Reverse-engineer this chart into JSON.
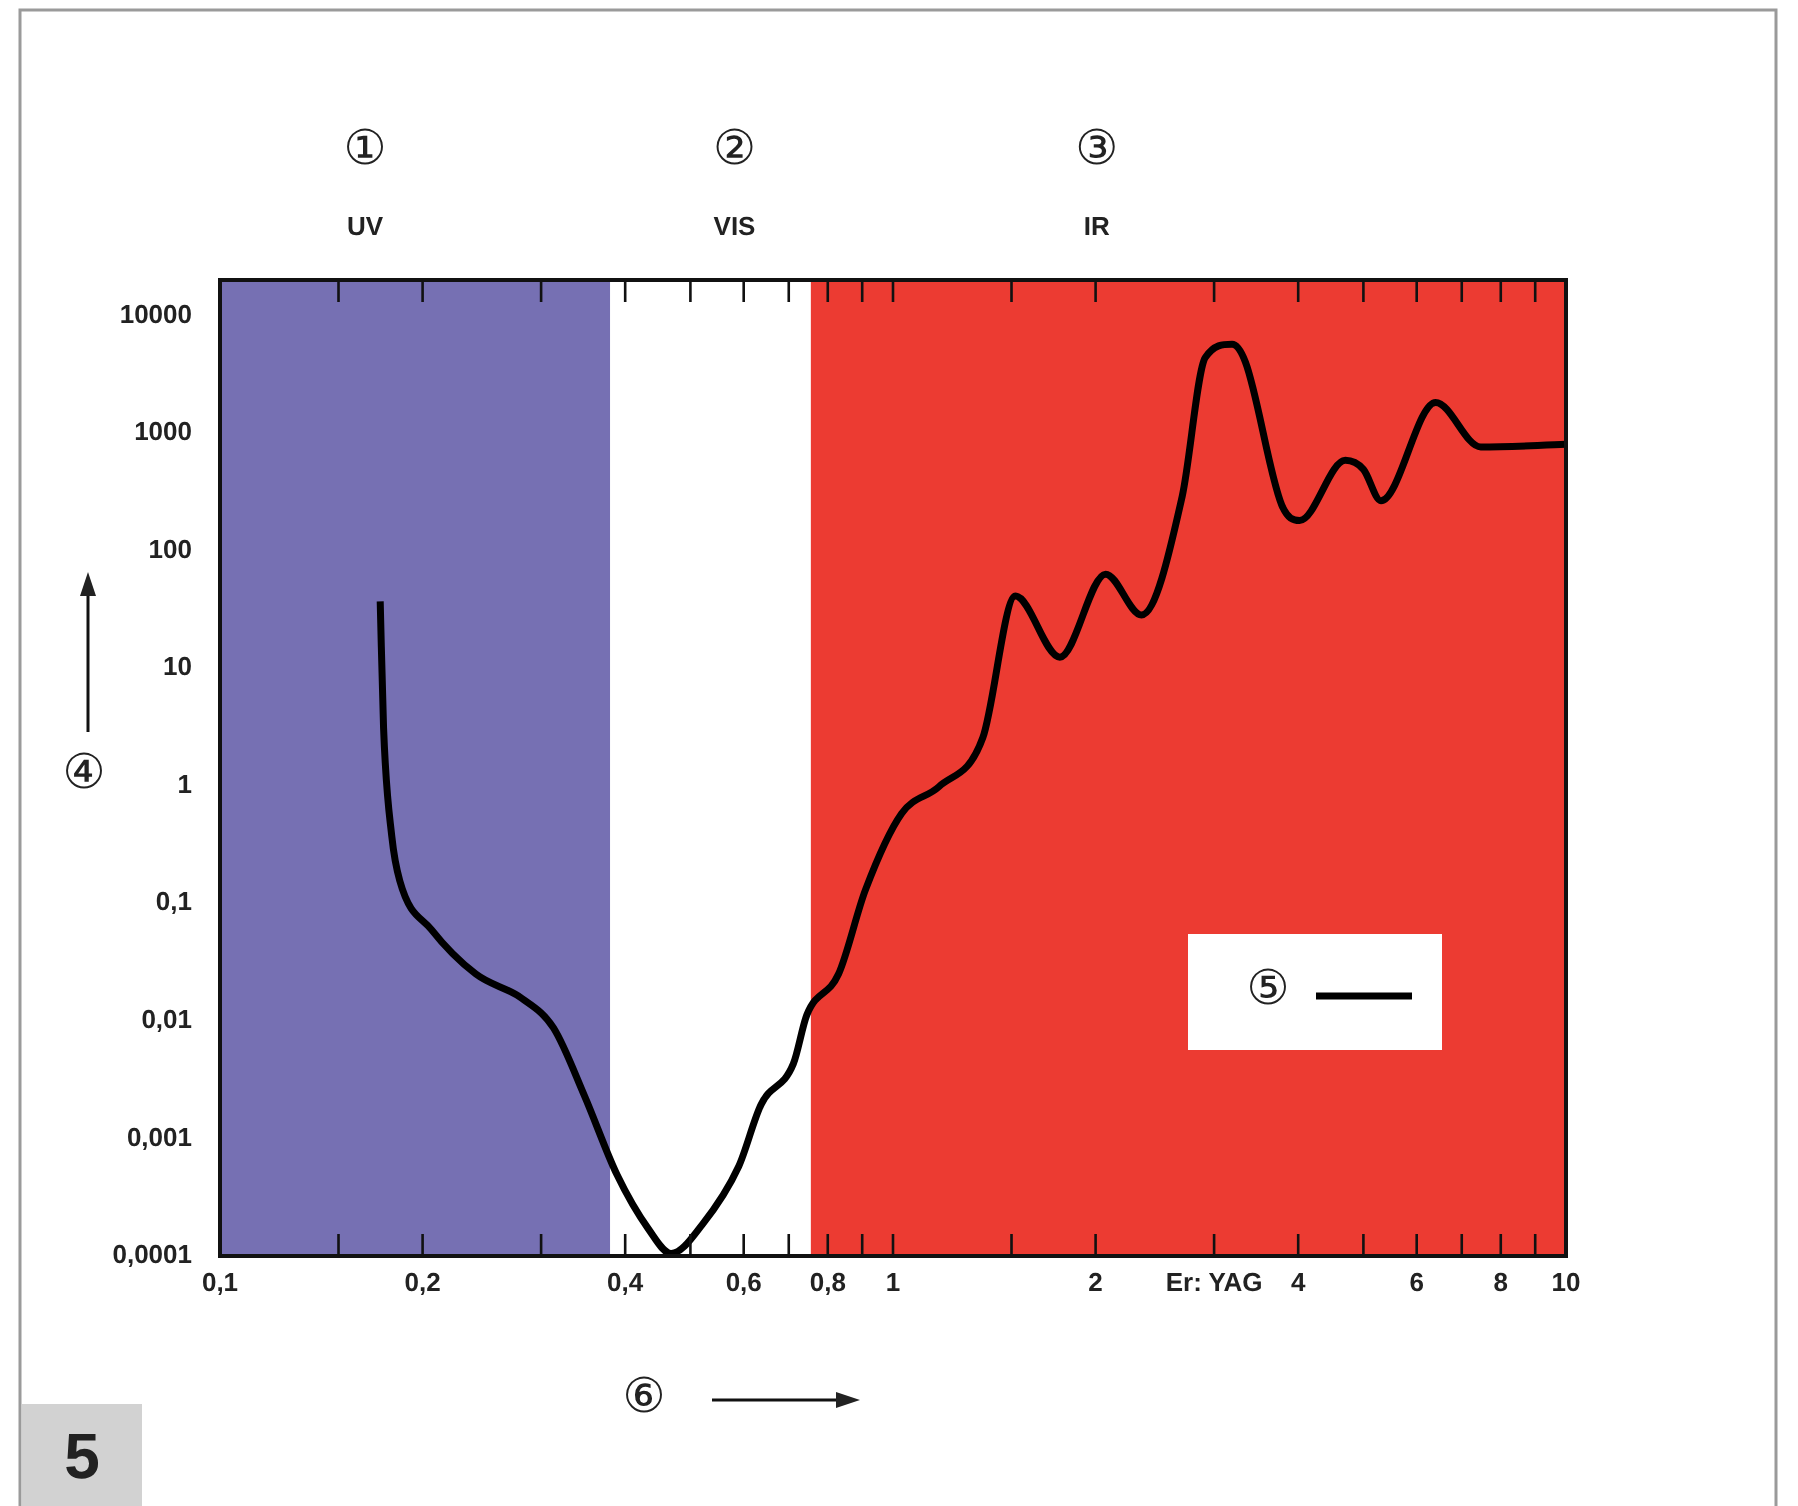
{
  "chart_data": {
    "type": "line",
    "xlabel": "⑥",
    "ylabel": "④",
    "log": "xy",
    "grid": false,
    "legend": "bottom right",
    "marker": "none",
    "line_style": "solid",
    "xlim": [
      0.1,
      10
    ],
    "ylim": [
      0.0001,
      20000
    ],
    "xticks": [
      {
        "value": 0.1,
        "label": "0,1"
      },
      {
        "value": 0.15,
        "label": null
      },
      {
        "value": 0.2,
        "label": "0,2"
      },
      {
        "value": 0.3,
        "label": null
      },
      {
        "value": 0.4,
        "label": "0,4"
      },
      {
        "value": 0.5,
        "label": null
      },
      {
        "value": 0.6,
        "label": "0,6"
      },
      {
        "value": 0.7,
        "label": null
      },
      {
        "value": 0.8,
        "label": "0,8"
      },
      {
        "value": 0.9,
        "label": null
      },
      1,
      {
        "value": 1.5,
        "label": null
      },
      2,
      {
        "value": 3,
        "label": "Er: YAG"
      },
      4,
      {
        "value": 5,
        "label": null
      },
      6,
      {
        "value": 7,
        "label": null
      },
      8,
      {
        "value": 9,
        "label": null
      },
      10
    ],
    "yticks": [
      {
        "value": 0.0001,
        "label": "0,0001"
      },
      {
        "value": 0.001,
        "label": "0,001"
      },
      {
        "value": 0.01,
        "label": "0,01"
      },
      {
        "value": 0.1,
        "label": "0,1"
      },
      1,
      10,
      100,
      1000,
      10000
    ],
    "bands": [
      {
        "axis": "x",
        "from": 0.1,
        "to": 0.38,
        "label": "UV",
        "color": "#7670b3"
      },
      {
        "axis": "x",
        "from": 0.38,
        "to": 0.755,
        "label": "VIS",
        "color": "#ffffff"
      },
      {
        "axis": "x",
        "from": 0.755,
        "to": 10,
        "label": "IR",
        "color": "#ec3b32"
      }
    ],
    "annotations": [
      "①",
      "②",
      "③",
      "5"
    ],
    "series": [
      {
        "name": "⑤",
        "color": "#000000",
        "x": [
          0.173,
          0.175,
          0.18,
          0.185,
          0.206,
          0.24,
          0.281,
          0.313,
          0.348,
          0.389,
          0.433,
          0.468,
          0.521,
          0.59,
          0.637,
          0.711,
          0.745,
          0.83,
          0.91,
          1.03,
          1.17,
          1.36,
          1.52,
          1.77,
          2.07,
          2.34,
          2.69,
          2.91,
          3.19,
          3.34,
          3.78,
          4.02,
          4.7,
          5.0,
          5.31,
          6.4,
          7.47,
          10
        ],
        "values": [
          37,
          3.1,
          0.37,
          0.155,
          0.06,
          0.025,
          0.0155,
          0.0087,
          0.0023,
          0.00049,
          0.00017,
          0.000105,
          0.000186,
          0.00058,
          0.00195,
          0.0043,
          0.0113,
          0.025,
          0.13,
          0.58,
          0.98,
          2.57,
          41,
          12.4,
          63,
          28.3,
          290,
          4370,
          5690,
          4000,
          245,
          180,
          585,
          490,
          265,
          1820,
          760,
          800
        ]
      }
    ]
  }
}
